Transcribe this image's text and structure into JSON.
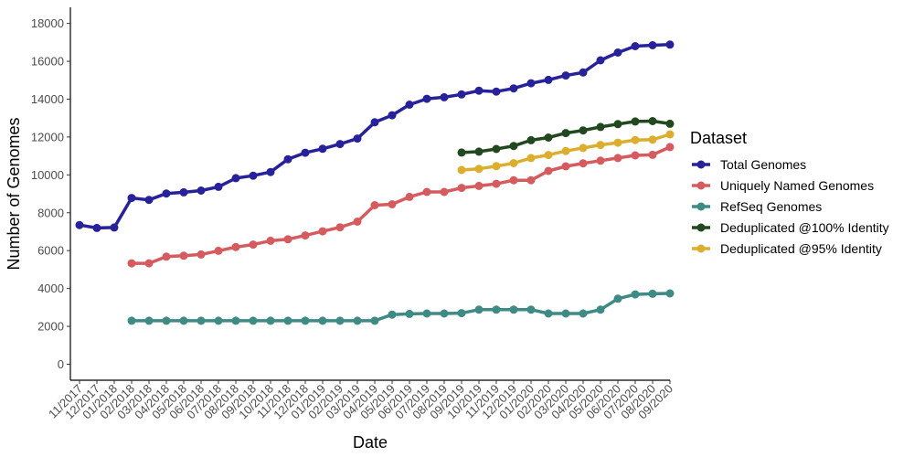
{
  "chart_data": {
    "type": "line",
    "xlabel": "Date",
    "ylabel": "Number of Genomes",
    "ylim": [
      0,
      18000
    ],
    "yticks": [
      0,
      2000,
      4000,
      6000,
      8000,
      10000,
      12000,
      14000,
      16000,
      18000
    ],
    "grid": false,
    "legend_title": "Dataset",
    "legend_position": "right",
    "categories": [
      "11/2017",
      "12/2017",
      "01/2018",
      "02/2018",
      "03/2018",
      "04/2018",
      "05/2018",
      "06/2018",
      "07/2018",
      "08/2018",
      "09/2018",
      "10/2018",
      "11/2018",
      "12/2018",
      "01/2019",
      "02/2019",
      "03/2019",
      "04/2019",
      "05/2019",
      "06/2019",
      "07/2019",
      "08/2019",
      "09/2019",
      "10/2019",
      "11/2019",
      "12/2019",
      "01/2020",
      "02/2020",
      "03/2020",
      "04/2020",
      "05/2020",
      "06/2020",
      "07/2020",
      "08/2020",
      "09/2020"
    ],
    "series": [
      {
        "name": "Total Genomes",
        "color": "#27229a",
        "values": [
          7350,
          7200,
          7220,
          8780,
          8680,
          9020,
          9080,
          9170,
          9370,
          9830,
          9960,
          10150,
          10830,
          11170,
          11380,
          11630,
          11920,
          12780,
          13150,
          13710,
          14020,
          14100,
          14250,
          14450,
          14400,
          14570,
          14840,
          15020,
          15250,
          15410,
          16050,
          16460,
          16800,
          16850,
          16880
        ]
      },
      {
        "name": "Uniquely Named Genomes",
        "color": "#d65b5e",
        "values": [
          null,
          null,
          null,
          5330,
          5330,
          5680,
          5730,
          5800,
          5990,
          6190,
          6320,
          6520,
          6600,
          6800,
          7020,
          7230,
          7530,
          8400,
          8450,
          8840,
          9100,
          9100,
          9310,
          9420,
          9530,
          9720,
          9720,
          10210,
          10450,
          10610,
          10750,
          10890,
          11030,
          11060,
          11470
        ]
      },
      {
        "name": "RefSeq Genomes",
        "color": "#3e8a84",
        "values": [
          null,
          null,
          null,
          2300,
          2300,
          2300,
          2300,
          2300,
          2300,
          2300,
          2300,
          2300,
          2300,
          2300,
          2300,
          2300,
          2300,
          2300,
          2620,
          2660,
          2680,
          2680,
          2700,
          2880,
          2880,
          2880,
          2880,
          2680,
          2680,
          2680,
          2880,
          3460,
          3690,
          3720,
          3740
        ]
      },
      {
        "name": "Deduplicated @100% Identity",
        "color": "#22481f",
        "values": [
          null,
          null,
          null,
          null,
          null,
          null,
          null,
          null,
          null,
          null,
          null,
          null,
          null,
          null,
          null,
          null,
          null,
          null,
          null,
          null,
          null,
          null,
          11180,
          11230,
          11370,
          11530,
          11830,
          11970,
          12210,
          12350,
          12530,
          12680,
          12820,
          12840,
          12700
        ]
      },
      {
        "name": "Deduplicated @95% Identity",
        "color": "#dcae2e",
        "values": [
          null,
          null,
          null,
          null,
          null,
          null,
          null,
          null,
          null,
          null,
          null,
          null,
          null,
          null,
          null,
          null,
          null,
          null,
          null,
          null,
          null,
          null,
          10260,
          10320,
          10460,
          10620,
          10890,
          11050,
          11260,
          11420,
          11580,
          11700,
          11840,
          11860,
          12140
        ]
      }
    ]
  }
}
